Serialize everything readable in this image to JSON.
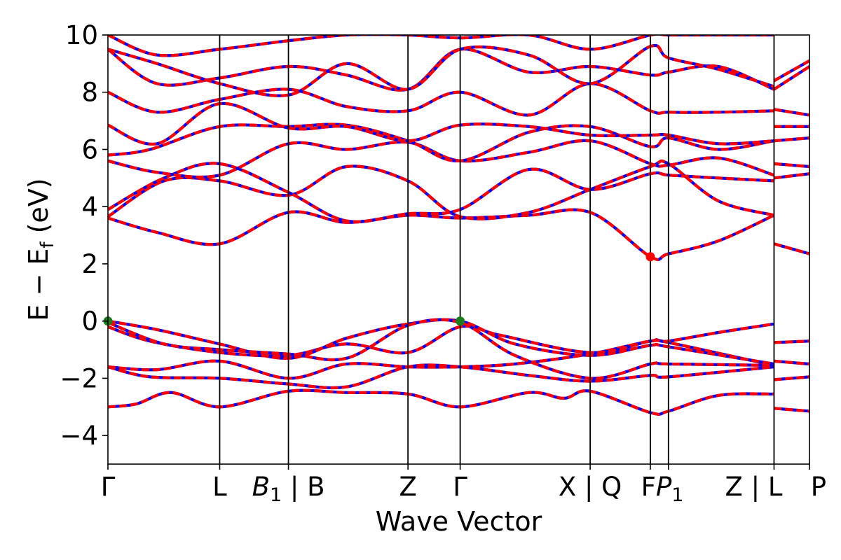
{
  "chart_data": {
    "type": "line",
    "title": "",
    "xlabel": "Wave Vector",
    "ylabel": "E − E_f (eV)",
    "ylabel_parts": {
      "main": "E − E",
      "sub": "f",
      "unit": " (eV)"
    },
    "ylim": [
      -5,
      10
    ],
    "yticks": [
      {
        "value": -4,
        "label": "−4"
      },
      {
        "value": -2,
        "label": "−2"
      },
      {
        "value": 0,
        "label": "0"
      },
      {
        "value": 2,
        "label": "2"
      },
      {
        "value": 4,
        "label": "4"
      },
      {
        "value": 6,
        "label": "6"
      },
      {
        "value": 8,
        "label": "8"
      },
      {
        "value": 10,
        "label": "10"
      }
    ],
    "xlim": [
      0,
      1
    ],
    "kpoints": [
      {
        "x": 0.0,
        "label": "Γ"
      },
      {
        "x": 0.1593,
        "label": "L"
      },
      {
        "x": 0.2573,
        "label_main": "B",
        "label_sub": "1",
        "label_rest": " | B"
      },
      {
        "x": 0.4277,
        "label": "Z"
      },
      {
        "x": 0.5021,
        "label": "Γ"
      },
      {
        "x": 0.6874,
        "label": "X | Q"
      },
      {
        "x": 0.7732,
        "label": "F"
      },
      {
        "x": 0.799,
        "label_main": "P",
        "label_sub": "1"
      },
      {
        "x": 0.9495,
        "label": "Z | L"
      },
      {
        "x": 1.0,
        "label": "P"
      }
    ],
    "series_colors": {
      "spin_up": "#ff0000",
      "spin_down": "#0000ff"
    },
    "markers": [
      {
        "name": "vbm",
        "x": 0.0,
        "y": 0.0,
        "color": "#1a7f1a"
      },
      {
        "name": "vbm",
        "x": 0.5021,
        "y": 0.0,
        "color": "#1a7f1a"
      },
      {
        "name": "cbm",
        "x": 0.7732,
        "y": 2.25,
        "color": "#ff0000"
      }
    ],
    "bands": [
      {
        "name": "band-1",
        "points": [
          [
            0,
            -3.0
          ],
          [
            0.04,
            -2.9
          ],
          [
            0.09,
            -2.5
          ],
          [
            0.1593,
            -3.0
          ],
          [
            0.2573,
            -2.45
          ],
          [
            0.34,
            -2.5
          ],
          [
            0.4277,
            -2.55
          ],
          [
            0.5021,
            -3.0
          ],
          [
            0.6,
            -2.5
          ],
          [
            0.65,
            -2.7
          ],
          [
            0.6874,
            -2.45
          ],
          [
            0.7732,
            -3.2
          ],
          [
            0.799,
            -3.15
          ],
          [
            0.87,
            -2.6
          ],
          [
            0.9495,
            -2.55
          ]
        ]
      },
      {
        "name": "band-2",
        "points": [
          [
            0,
            -1.6
          ],
          [
            0.06,
            -1.95
          ],
          [
            0.1593,
            -2.0
          ],
          [
            0.2573,
            -2.2
          ],
          [
            0.34,
            -2.3
          ],
          [
            0.4277,
            -1.6
          ],
          [
            0.5021,
            -1.6
          ],
          [
            0.6,
            -1.9
          ],
          [
            0.6874,
            -2.1
          ],
          [
            0.7732,
            -1.9
          ],
          [
            0.799,
            -1.95
          ],
          [
            0.9495,
            -1.6
          ]
        ]
      },
      {
        "name": "band-3",
        "points": [
          [
            0,
            -1.6
          ],
          [
            0.07,
            -1.7
          ],
          [
            0.1593,
            -1.4
          ],
          [
            0.2573,
            -2.0
          ],
          [
            0.34,
            -1.5
          ],
          [
            0.4277,
            -1.6
          ],
          [
            0.5021,
            -1.6
          ],
          [
            0.58,
            -1.5
          ],
          [
            0.6874,
            -1.15
          ],
          [
            0.7732,
            -0.7
          ],
          [
            0.799,
            -0.75
          ],
          [
            0.9495,
            -1.55
          ]
        ]
      },
      {
        "name": "band-4",
        "points": [
          [
            0,
            -0.2
          ],
          [
            0.06,
            -0.7
          ],
          [
            0.1593,
            -1.1
          ],
          [
            0.2573,
            -1.2
          ],
          [
            0.34,
            -0.8
          ],
          [
            0.4277,
            -1.1
          ],
          [
            0.5021,
            -0.2
          ],
          [
            0.56,
            -0.5
          ],
          [
            0.6874,
            -1.1
          ],
          [
            0.7732,
            -0.7
          ],
          [
            0.799,
            -0.7
          ],
          [
            0.87,
            -0.4
          ],
          [
            0.9495,
            -0.1
          ]
        ]
      },
      {
        "name": "band-5",
        "points": [
          [
            0,
            0.0
          ],
          [
            0.07,
            -0.3
          ],
          [
            0.1593,
            -0.8
          ],
          [
            0.2573,
            -1.3
          ],
          [
            0.34,
            -0.6
          ],
          [
            0.4277,
            -0.1
          ],
          [
            0.5021,
            0.0
          ],
          [
            0.58,
            -0.8
          ],
          [
            0.6874,
            -1.2
          ],
          [
            0.7732,
            -0.85
          ],
          [
            0.799,
            -0.9
          ],
          [
            0.9495,
            -1.5
          ]
        ]
      },
      {
        "name": "band-6",
        "points": [
          [
            0,
            -0.05
          ],
          [
            0.08,
            -0.8
          ],
          [
            0.1593,
            -1.0
          ],
          [
            0.2573,
            -1.15
          ],
          [
            0.34,
            -1.3
          ],
          [
            0.4277,
            -0.15
          ],
          [
            0.5021,
            -0.05
          ],
          [
            0.58,
            -1.2
          ],
          [
            0.6874,
            -2.0
          ],
          [
            0.7732,
            -1.5
          ],
          [
            0.799,
            -1.5
          ],
          [
            0.9495,
            -1.55
          ]
        ]
      },
      {
        "name": "band-7",
        "points": [
          [
            0,
            3.6
          ],
          [
            0.07,
            3.1
          ],
          [
            0.1593,
            2.7
          ],
          [
            0.2573,
            3.8
          ],
          [
            0.34,
            3.45
          ],
          [
            0.4277,
            3.7
          ],
          [
            0.5021,
            3.6
          ],
          [
            0.6,
            3.7
          ],
          [
            0.6874,
            3.8
          ],
          [
            0.7732,
            2.25
          ],
          [
            0.799,
            2.35
          ],
          [
            0.87,
            2.8
          ],
          [
            0.9495,
            3.7
          ]
        ]
      },
      {
        "name": "band-8",
        "points": [
          [
            0,
            3.65
          ],
          [
            0.08,
            4.9
          ],
          [
            0.1593,
            4.9
          ],
          [
            0.2573,
            4.4
          ],
          [
            0.34,
            5.4
          ],
          [
            0.4277,
            4.9
          ],
          [
            0.5021,
            3.65
          ],
          [
            0.6,
            3.8
          ],
          [
            0.6874,
            4.6
          ],
          [
            0.7732,
            5.4
          ],
          [
            0.799,
            5.5
          ],
          [
            0.87,
            4.2
          ],
          [
            0.9495,
            3.7
          ]
        ]
      },
      {
        "name": "band-9",
        "points": [
          [
            0,
            3.9
          ],
          [
            0.08,
            5.0
          ],
          [
            0.1593,
            5.5
          ],
          [
            0.2573,
            4.5
          ],
          [
            0.34,
            3.5
          ],
          [
            0.4277,
            3.75
          ],
          [
            0.5021,
            3.9
          ],
          [
            0.6,
            5.3
          ],
          [
            0.6874,
            4.6
          ],
          [
            0.7732,
            5.15
          ],
          [
            0.799,
            5.1
          ],
          [
            0.87,
            5.0
          ],
          [
            0.9495,
            4.9
          ]
        ]
      },
      {
        "name": "band-10",
        "points": [
          [
            0,
            5.6
          ],
          [
            0.07,
            5.2
          ],
          [
            0.1593,
            5.1
          ],
          [
            0.2573,
            6.2
          ],
          [
            0.34,
            6.0
          ],
          [
            0.4277,
            6.25
          ],
          [
            0.5021,
            5.6
          ],
          [
            0.6,
            5.9
          ],
          [
            0.6874,
            6.3
          ],
          [
            0.7732,
            5.5
          ],
          [
            0.799,
            5.45
          ],
          [
            0.87,
            5.7
          ],
          [
            0.9495,
            5.1
          ]
        ]
      },
      {
        "name": "band-11",
        "points": [
          [
            0,
            5.8
          ],
          [
            0.06,
            6.0
          ],
          [
            0.1593,
            6.8
          ],
          [
            0.2573,
            6.8
          ],
          [
            0.34,
            6.85
          ],
          [
            0.4277,
            6.3
          ],
          [
            0.5021,
            5.6
          ],
          [
            0.6,
            6.6
          ],
          [
            0.6874,
            6.8
          ],
          [
            0.7732,
            6.1
          ],
          [
            0.799,
            6.4
          ],
          [
            0.87,
            6.0
          ],
          [
            0.9495,
            6.3
          ]
        ]
      },
      {
        "name": "band-12",
        "points": [
          [
            0,
            6.85
          ],
          [
            0.07,
            6.2
          ],
          [
            0.1593,
            7.6
          ],
          [
            0.2573,
            6.75
          ],
          [
            0.34,
            6.8
          ],
          [
            0.4277,
            6.3
          ],
          [
            0.5021,
            6.85
          ],
          [
            0.6,
            6.8
          ],
          [
            0.6874,
            6.5
          ],
          [
            0.7732,
            6.5
          ],
          [
            0.799,
            6.5
          ],
          [
            0.87,
            6.2
          ],
          [
            0.9495,
            6.3
          ]
        ]
      },
      {
        "name": "band-13",
        "points": [
          [
            0,
            8.0
          ],
          [
            0.07,
            7.3
          ],
          [
            0.1593,
            7.75
          ],
          [
            0.2573,
            8.1
          ],
          [
            0.34,
            7.5
          ],
          [
            0.4277,
            7.35
          ],
          [
            0.5021,
            8.0
          ],
          [
            0.6,
            7.2
          ],
          [
            0.6874,
            8.3
          ],
          [
            0.7732,
            7.35
          ],
          [
            0.799,
            7.3
          ],
          [
            0.87,
            7.3
          ],
          [
            0.9495,
            7.35
          ]
        ]
      },
      {
        "name": "band-14",
        "points": [
          [
            0,
            9.5
          ],
          [
            0.07,
            8.3
          ],
          [
            0.1593,
            8.5
          ],
          [
            0.2573,
            8.9
          ],
          [
            0.34,
            8.6
          ],
          [
            0.4277,
            8.1
          ],
          [
            0.5021,
            9.5
          ],
          [
            0.6,
            8.7
          ],
          [
            0.6874,
            8.9
          ],
          [
            0.7732,
            8.6
          ],
          [
            0.799,
            8.7
          ],
          [
            0.87,
            8.9
          ],
          [
            0.9495,
            8.1
          ]
        ]
      },
      {
        "name": "band-15",
        "points": [
          [
            0,
            9.5
          ],
          [
            0.07,
            9.0
          ],
          [
            0.1593,
            8.3
          ],
          [
            0.2573,
            7.9
          ],
          [
            0.34,
            9.0
          ],
          [
            0.4277,
            8.1
          ],
          [
            0.5021,
            9.5
          ],
          [
            0.6,
            9.3
          ],
          [
            0.6874,
            8.3
          ],
          [
            0.7732,
            9.6
          ],
          [
            0.799,
            9.2
          ],
          [
            0.87,
            8.8
          ],
          [
            0.9495,
            8.2
          ]
        ]
      },
      {
        "name": "band-16",
        "points": [
          [
            0,
            10.0
          ],
          [
            0.07,
            9.3
          ],
          [
            0.1593,
            9.5
          ],
          [
            0.2573,
            9.8
          ],
          [
            0.34,
            10.0
          ],
          [
            0.4277,
            10.0
          ],
          [
            0.5021,
            9.9
          ],
          [
            0.6,
            10.0
          ],
          [
            0.6874,
            9.5
          ],
          [
            0.7732,
            10.0
          ],
          [
            0.799,
            10.0
          ],
          [
            0.87,
            10.0
          ],
          [
            0.9495,
            10.0
          ]
        ]
      },
      {
        "name": "band-lp-1",
        "points": [
          [
            0.9495,
            2.7
          ],
          [
            1.0,
            2.35
          ]
        ]
      },
      {
        "name": "band-lp-2",
        "points": [
          [
            0.9495,
            -0.75
          ],
          [
            1.0,
            -0.7
          ]
        ]
      },
      {
        "name": "band-lp-3",
        "points": [
          [
            0.9495,
            -1.4
          ],
          [
            1.0,
            -1.5
          ]
        ]
      },
      {
        "name": "band-lp-4",
        "points": [
          [
            0.9495,
            -2.05
          ],
          [
            1.0,
            -1.95
          ]
        ]
      },
      {
        "name": "band-lp-5",
        "points": [
          [
            0.9495,
            -3.05
          ],
          [
            1.0,
            -3.15
          ]
        ]
      },
      {
        "name": "band-lp-6",
        "points": [
          [
            0.9495,
            5.0
          ],
          [
            1.0,
            5.15
          ]
        ]
      },
      {
        "name": "band-lp-7",
        "points": [
          [
            0.9495,
            5.5
          ],
          [
            1.0,
            5.4
          ]
        ]
      },
      {
        "name": "band-lp-8",
        "points": [
          [
            0.9495,
            6.3
          ],
          [
            1.0,
            6.4
          ]
        ]
      },
      {
        "name": "band-lp-9",
        "points": [
          [
            0.9495,
            6.8
          ],
          [
            1.0,
            6.8
          ]
        ]
      },
      {
        "name": "band-lp-10",
        "points": [
          [
            0.9495,
            7.4
          ],
          [
            1.0,
            7.2
          ]
        ]
      },
      {
        "name": "band-lp-11",
        "points": [
          [
            0.9495,
            8.1
          ],
          [
            1.0,
            8.9
          ]
        ]
      },
      {
        "name": "band-lp-12",
        "points": [
          [
            0.9495,
            8.4
          ],
          [
            1.0,
            9.1
          ]
        ]
      }
    ]
  }
}
